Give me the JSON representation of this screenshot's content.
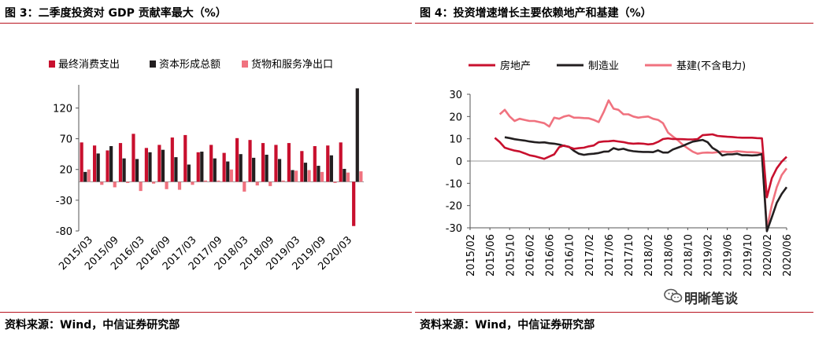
{
  "left": {
    "title": "图 3：二季度投资对 GDP 贡献率最大（%）",
    "source": "资料来源：Wind，中信证券研究部"
  },
  "right": {
    "title": "图 4：投资增速增长主要依赖地产和基建（%）",
    "source": "资料来源：Wind，中信证券研究部",
    "watermark": "明晰笔谈"
  },
  "colors": {
    "red": "#c8102e",
    "black": "#231f20",
    "pink": "#f0727f",
    "rule": "#b8141f"
  },
  "chart_data": [
    {
      "type": "bar",
      "title": "图 3：二季度投资对 GDP 贡献率最大（%）",
      "ylim": [
        -80,
        150
      ],
      "yticks": [
        -80,
        -30,
        20,
        70,
        120
      ],
      "tick_labels": [
        "2015/03",
        "2015/09",
        "2016/03",
        "2016/09",
        "2017/03",
        "2017/09",
        "2018/03",
        "2018/09",
        "2019/03",
        "2019/09",
        "2020/03"
      ],
      "categories": [
        "2015/03",
        "2015/06",
        "2015/09",
        "2015/12",
        "2016/03",
        "2016/06",
        "2016/09",
        "2016/12",
        "2017/03",
        "2017/06",
        "2017/09",
        "2017/12",
        "2018/03",
        "2018/06",
        "2018/09",
        "2018/12",
        "2019/03",
        "2019/06",
        "2019/09",
        "2019/12",
        "2020/03",
        "2020/06"
      ],
      "legend": "top",
      "series": [
        {
          "name": "最终消费支出",
          "color": "#c8102e",
          "values": [
            64,
            59,
            51,
            63,
            78,
            55,
            60,
            72,
            76,
            48,
            60,
            47,
            71,
            68,
            63,
            60,
            63,
            50,
            58,
            59,
            64,
            -72
          ]
        },
        {
          "name": "资本形成总额",
          "color": "#231f20",
          "values": [
            16,
            46,
            58,
            38,
            37,
            48,
            52,
            40,
            28,
            49,
            38,
            33,
            45,
            39,
            44,
            37,
            19,
            31,
            26,
            43,
            21,
            152
          ]
        },
        {
          "name": "货物和服务净出口",
          "color": "#f0727f",
          "values": [
            20,
            -5,
            -9,
            -2,
            -15,
            -3,
            -12,
            -13,
            -5,
            2,
            2,
            20,
            -16,
            -6,
            -7,
            2,
            18,
            19,
            16,
            -2,
            15,
            17
          ]
        }
      ]
    },
    {
      "type": "line",
      "title": "图 4：投资增速增长主要依赖地产和基建（%）",
      "ylim": [
        -30,
        30
      ],
      "yticks": [
        -30,
        -20,
        -10,
        0,
        10,
        20,
        30
      ],
      "tick_labels": [
        "2015/02",
        "2015/06",
        "2015/10",
        "2016/02",
        "2016/06",
        "2016/10",
        "2017/02",
        "2017/06",
        "2017/10",
        "2018/02",
        "2018/06",
        "2018/10",
        "2019/02",
        "2019/06",
        "2019/10",
        "2020/02",
        "2020/06"
      ],
      "legend": "top",
      "x_start": "2015/02",
      "series": [
        {
          "name": "房地产",
          "color": "#c8102e",
          "values": [
            10.4,
            8.5,
            6.0,
            5.3,
            4.7,
            4.3,
            3.5,
            2.6,
            2.2,
            1.6,
            1.0,
            2.0,
            3.0,
            6.2,
            7.0,
            6.3,
            5.5,
            5.8,
            6.0,
            6.6,
            7.0,
            8.5,
            8.8,
            8.9,
            9.1,
            8.8,
            8.5,
            8.0,
            7.8,
            7.9,
            7.8,
            7.5,
            7.7,
            8.6,
            9.9,
            10.2,
            9.9,
            9.9,
            9.8,
            9.7,
            9.7,
            9.9,
            11.6,
            11.8,
            12.0,
            11.3,
            11.1,
            10.9,
            10.8,
            10.6,
            10.5,
            10.5,
            10.5,
            10.3,
            10.2,
            -16.3,
            -7.7,
            -3.3,
            -0.3,
            1.9
          ]
        },
        {
          "name": "制造业",
          "color": "#231f20",
          "values": [
            10.7,
            10.3,
            9.8,
            9.5,
            9.2,
            8.8,
            8.5,
            8.3,
            8.4,
            8.0,
            7.8,
            7.4,
            6.8,
            6.4,
            4.6,
            3.3,
            2.8,
            3.1,
            3.3,
            3.6,
            4.2,
            4.3,
            5.8,
            5.1,
            5.5,
            4.8,
            4.4,
            4.2,
            4.1,
            4.1,
            4.0,
            4.8,
            3.8,
            3.8,
            5.2,
            6.0,
            6.8,
            7.8,
            8.7,
            9.1,
            9.5,
            8.5,
            5.9,
            4.6,
            2.5,
            3.0,
            3.0,
            3.3,
            2.6,
            2.6,
            2.5,
            2.6,
            3.1,
            -31.5,
            -25.2,
            -18.8,
            -14.8,
            -11.7
          ]
        },
        {
          "name": "基建(不含电力)",
          "color": "#f0727f",
          "values": [
            21.0,
            23.0,
            20.0,
            18.0,
            19.0,
            18.5,
            18.0,
            18.0,
            17.5,
            17.0,
            15.5,
            19.5,
            19.0,
            20.0,
            20.5,
            19.5,
            19.5,
            19.3,
            19.2,
            18.5,
            17.5,
            22.0,
            27.3,
            23.5,
            23.0,
            21.0,
            21.0,
            20.0,
            19.5,
            19.8,
            20.0,
            19.0,
            18.5,
            17.0,
            12.8,
            11.0,
            9.4,
            7.3,
            5.7,
            4.2,
            3.3,
            3.7,
            3.8,
            3.7,
            4.0,
            4.3,
            4.1,
            4.1,
            4.4,
            4.2,
            4.0,
            4.0,
            3.8,
            3.5,
            -30.3,
            -19.7,
            -11.8,
            -6.3,
            -3.3
          ]
        }
      ]
    }
  ]
}
